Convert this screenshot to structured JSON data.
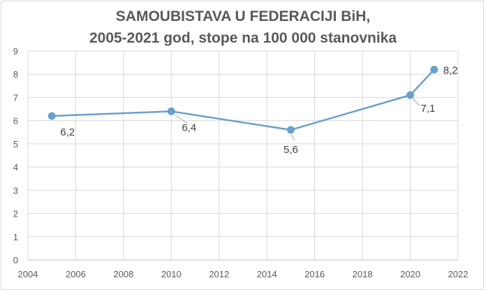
{
  "chart_data": {
    "type": "line",
    "title_lines": [
      "SAMOUBISTAVA U FEDERACIJI BiH,",
      "2005-2021 god, stope na 100 000 stanovnika"
    ],
    "xlabel": "",
    "ylabel": "",
    "xlim": [
      2004,
      2022
    ],
    "ylim": [
      0,
      9
    ],
    "x_ticks": [
      2004,
      2006,
      2008,
      2010,
      2012,
      2014,
      2016,
      2018,
      2020,
      2022
    ],
    "y_ticks": [
      0,
      1,
      2,
      3,
      4,
      5,
      6,
      7,
      8,
      9
    ],
    "grid": true,
    "legend": "none",
    "series": [
      {
        "color": "#6aa0cc",
        "points": [
          {
            "x": 2005,
            "y": 6.2,
            "label": "6,2",
            "label_pos": "below-right",
            "leader": false
          },
          {
            "x": 2010,
            "y": 6.4,
            "label": "6,4",
            "label_pos": "below-right",
            "leader": true
          },
          {
            "x": 2015,
            "y": 5.6,
            "label": "5,6",
            "label_pos": "below",
            "leader": true
          },
          {
            "x": 2020,
            "y": 7.1,
            "label": "7,1",
            "label_pos": "below-right",
            "leader": true
          },
          {
            "x": 2021,
            "y": 8.2,
            "label": "8,2",
            "label_pos": "right",
            "leader": false
          }
        ]
      }
    ]
  }
}
